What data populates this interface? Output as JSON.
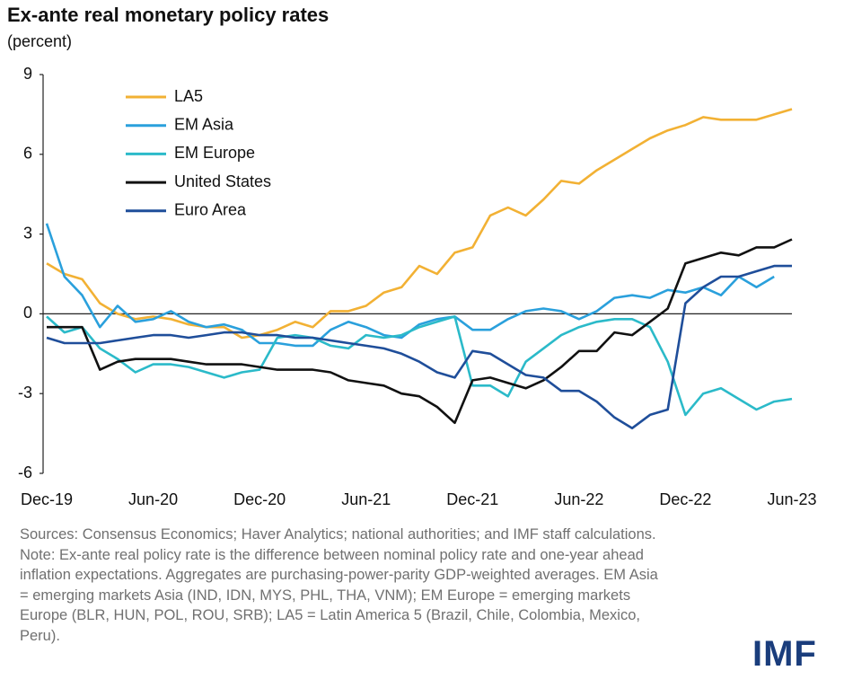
{
  "chart_data": {
    "type": "line",
    "title": "Ex-ante real monetary policy rates",
    "subtitle": "(percent)",
    "categories": [
      "Dec-19",
      null,
      null,
      null,
      null,
      null,
      "Jun-20",
      null,
      null,
      null,
      null,
      null,
      "Dec-20",
      null,
      null,
      null,
      null,
      null,
      "Jun-21",
      null,
      null,
      null,
      null,
      null,
      "Dec-21",
      null,
      null,
      null,
      null,
      null,
      "Jun-22",
      null,
      null,
      null,
      null,
      null,
      "Dec-22",
      null,
      null,
      null,
      null,
      null,
      "Jun-23"
    ],
    "series": [
      {
        "name": "LA5",
        "color": "#f2b134",
        "values": [
          1.9,
          1.5,
          1.3,
          0.4,
          0.0,
          -0.2,
          -0.1,
          -0.2,
          -0.4,
          -0.5,
          -0.5,
          -0.9,
          -0.8,
          -0.6,
          -0.3,
          -0.5,
          0.1,
          0.1,
          0.3,
          0.8,
          1.0,
          1.8,
          1.5,
          2.3,
          2.5,
          3.7,
          4.0,
          3.7,
          4.3,
          5.0,
          4.9,
          5.4,
          5.8,
          6.2,
          6.6,
          6.9,
          7.1,
          7.4,
          7.3,
          7.3,
          7.3,
          7.5,
          7.7
        ]
      },
      {
        "name": "EM Asia",
        "color": "#2aa0dc",
        "values": [
          3.4,
          1.4,
          0.7,
          -0.5,
          0.3,
          -0.3,
          -0.2,
          0.1,
          -0.3,
          -0.5,
          -0.4,
          -0.6,
          -1.1,
          -1.1,
          -1.2,
          -1.2,
          -0.6,
          -0.3,
          -0.5,
          -0.8,
          -0.9,
          -0.4,
          -0.2,
          -0.1,
          -0.6,
          -0.6,
          -0.2,
          0.1,
          0.2,
          0.1,
          -0.2,
          0.1,
          0.6,
          0.7,
          0.6,
          0.9,
          0.8,
          1.0,
          0.7,
          1.4,
          1.0,
          1.4,
          null
        ]
      },
      {
        "name": "EM Europe",
        "color": "#2bbac9",
        "values": [
          -0.1,
          -0.7,
          -0.5,
          -1.3,
          -1.7,
          -2.2,
          -1.9,
          -1.9,
          -2.0,
          -2.2,
          -2.4,
          -2.2,
          -2.1,
          -0.9,
          -0.8,
          -0.9,
          -1.2,
          -1.3,
          -0.8,
          -0.9,
          -0.8,
          -0.5,
          -0.3,
          -0.1,
          -2.7,
          -2.7,
          -3.1,
          -1.8,
          -1.3,
          -0.8,
          -0.5,
          -0.3,
          -0.2,
          -0.2,
          -0.5,
          -1.8,
          -3.8,
          -3.0,
          -2.8,
          -3.2,
          -3.6,
          -3.3,
          -3.2
        ]
      },
      {
        "name": "United States",
        "color": "#111111",
        "values": [
          -0.5,
          -0.5,
          -0.5,
          -2.1,
          -1.8,
          -1.7,
          -1.7,
          -1.7,
          -1.8,
          -1.9,
          -1.9,
          -1.9,
          -2.0,
          -2.1,
          -2.1,
          -2.1,
          -2.2,
          -2.5,
          -2.6,
          -2.7,
          -3.0,
          -3.1,
          -3.5,
          -4.1,
          -2.5,
          -2.4,
          -2.6,
          -2.8,
          -2.5,
          -2.0,
          -1.4,
          -1.4,
          -0.7,
          -0.8,
          -0.3,
          0.2,
          1.9,
          2.1,
          2.3,
          2.2,
          2.5,
          2.5,
          2.8
        ]
      },
      {
        "name": "Euro Area",
        "color": "#1f4e9a",
        "values": [
          -0.9,
          -1.1,
          -1.1,
          -1.1,
          -1.0,
          -0.9,
          -0.8,
          -0.8,
          -0.9,
          -0.8,
          -0.7,
          -0.7,
          -0.8,
          -0.8,
          -0.9,
          -0.9,
          -1.0,
          -1.1,
          -1.2,
          -1.3,
          -1.5,
          -1.8,
          -2.2,
          -2.4,
          -1.4,
          -1.5,
          -1.9,
          -2.3,
          -2.4,
          -2.9,
          -2.9,
          -3.3,
          -3.9,
          -4.3,
          -3.8,
          -3.6,
          0.4,
          1.0,
          1.4,
          1.4,
          1.6,
          1.8,
          1.8
        ]
      }
    ],
    "ylim": [
      -6,
      9
    ],
    "yticks": [
      -6,
      -3,
      0,
      3,
      6,
      9
    ],
    "legend": "upper left",
    "sources": "Sources: Consensus Economics; Haver Analytics; national authorities; and IMF staff calculations.",
    "note": "Note: Ex-ante real policy rate is the difference between nominal policy rate and one-year ahead inflation expectations. Aggregates are purchasing-power-parity GDP-weighted averages. EM Asia = emerging markets Asia (IND, IDN, MYS, PHL, THA, VNM); EM Europe = emerging markets Europe (BLR, HUN, POL, ROU, SRB); LA5 = Latin America 5 (Brazil, Chile, Colombia, Mexico, Peru).",
    "logo": "IMF"
  }
}
